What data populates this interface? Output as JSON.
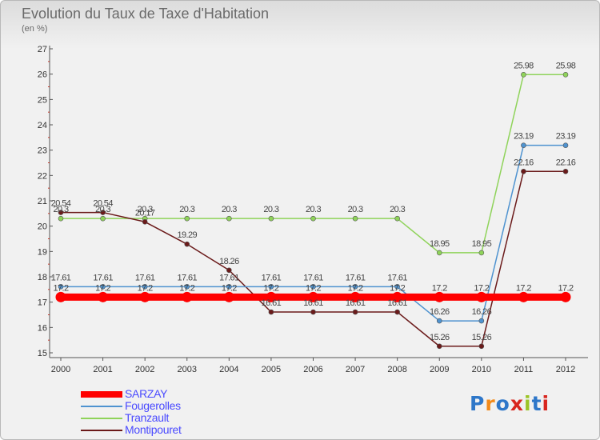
{
  "title": "Evolution du Taux de Taxe d'Habitation",
  "unit_label": "(en %)",
  "logo": {
    "text": "Proxiti",
    "letter_colors": [
      "#2e77c9",
      "#f28a1a",
      "#2e77c9",
      "#d8261f",
      "#9cc427",
      "#2e77c9",
      "#d8261f"
    ]
  },
  "chart_data": {
    "type": "line",
    "x": [
      2000,
      2001,
      2002,
      2003,
      2004,
      2005,
      2006,
      2007,
      2008,
      2009,
      2010,
      2011,
      2012
    ],
    "x_tick_labels": [
      "2000",
      "2001",
      "2002",
      "2003",
      "2004",
      "2005",
      "2006",
      "2007",
      "2008",
      "2009",
      "2010",
      "2011",
      "2012"
    ],
    "y_tick_labels": [
      "15",
      "16",
      "17",
      "18",
      "19",
      "20",
      "21",
      "22",
      "23",
      "24",
      "25",
      "26",
      "27"
    ],
    "ylim": [
      15,
      27
    ],
    "grid": false,
    "legend_position": "bottom-left",
    "series": [
      {
        "name": "SARZAY",
        "color": "#ff0000",
        "values": [
          17.2,
          17.2,
          17.2,
          17.2,
          17.2,
          17.2,
          17.2,
          17.2,
          17.2,
          17.2,
          17.2,
          17.2,
          17.2
        ],
        "labels": [
          "17.2",
          "17.2",
          "17.2",
          "17.2",
          "17.2",
          "17.2",
          "17.2",
          "17.2",
          "17.2",
          "17.2",
          "17.2",
          "17.2",
          "17.2"
        ]
      },
      {
        "name": "Fougerolles",
        "color": "#4f93d0",
        "values": [
          17.61,
          17.61,
          17.61,
          17.61,
          17.61,
          17.61,
          17.61,
          17.61,
          17.61,
          16.26,
          16.26,
          23.19,
          23.19
        ],
        "labels": [
          "17.61",
          "17.61",
          "17.61",
          "17.61",
          "17.61",
          "17.61",
          "17.61",
          "17.61",
          "17.61",
          "16.26",
          "16.26",
          "23.19",
          "23.19"
        ]
      },
      {
        "name": "Tranzault",
        "color": "#8fd35a",
        "values": [
          20.3,
          20.3,
          20.3,
          20.3,
          20.3,
          20.3,
          20.3,
          20.3,
          20.3,
          18.95,
          18.95,
          25.98,
          25.98
        ],
        "labels": [
          "20.3",
          "20.3",
          "20.3",
          "20.3",
          "20.3",
          "20.3",
          "20.3",
          "20.3",
          "20.3",
          "18.95",
          "18.95",
          "25.98",
          "25.98"
        ]
      },
      {
        "name": "Montipouret",
        "color": "#6b1a1a",
        "values": [
          20.54,
          20.54,
          20.17,
          19.29,
          18.26,
          16.61,
          16.61,
          16.61,
          16.61,
          15.26,
          15.26,
          22.16,
          22.16
        ],
        "labels": [
          "20.54",
          "20.54",
          "20.17",
          "19.29",
          "18.26",
          "16.61",
          "16.61",
          "16.61",
          "16.61",
          "15.26",
          "15.26",
          "22.16",
          "22.16"
        ]
      }
    ]
  }
}
